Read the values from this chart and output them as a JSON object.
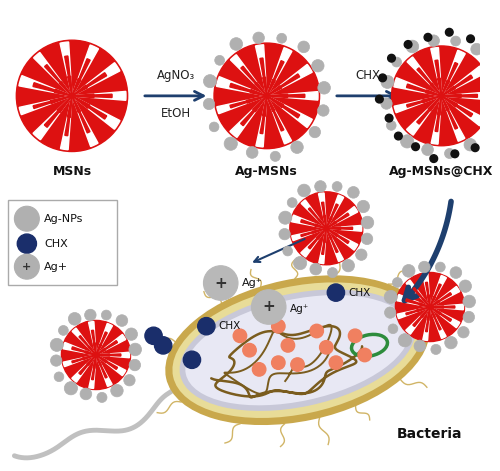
{
  "bg_color": "#ffffff",
  "arrow_color": "#1e3f6e",
  "msn_red": "#dd1111",
  "ag_np_color": "#b0b0b0",
  "ag_np_edge": "#888888",
  "chx_color": "#1a2e6b",
  "bacteria_outer_color": "#c9a84c",
  "bacteria_mid_color": "#e0d890",
  "bacteria_mem_color": "#c8c8d8",
  "bacteria_cyto_color": "#e8e8f4",
  "dna_color": "#7a5c1e",
  "flagella_color": "#c0c0c0",
  "fimbriae_color": "#c9a84c",
  "ribosome_color": "#f08060",
  "plasmid_color": "#2d8c3c",
  "label_msns": "MSNs",
  "label_agmsns": "Ag-MSNs",
  "label_agmsns_chx": "Ag-MSNs@CHX",
  "label_bacteria": "Bacteria",
  "legend_agnps": "Ag-NPs",
  "legend_chx": "CHX",
  "legend_agplus": "Ag+",
  "figsize": [
    5.0,
    4.71
  ],
  "dpi": 100
}
